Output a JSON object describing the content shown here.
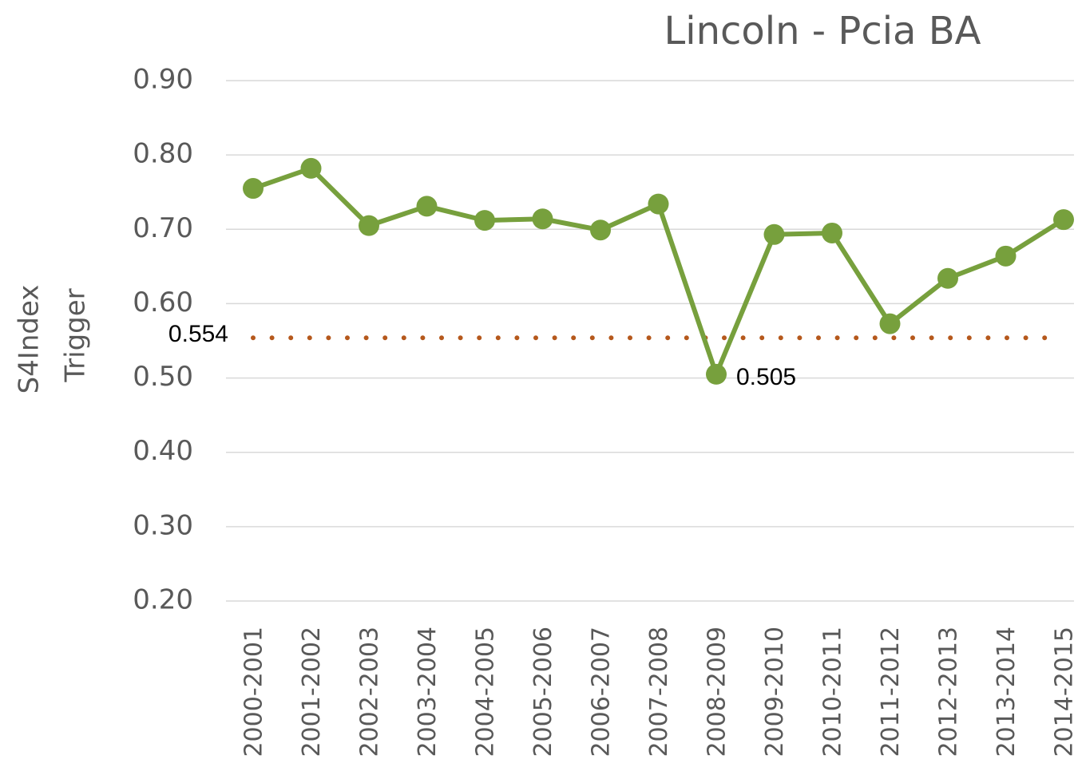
{
  "chart_data": {
    "type": "line",
    "title": "Lincoln - Pcia BA",
    "categories": [
      "2000-2001",
      "2001-2002",
      "2002-2003",
      "2003-2004",
      "2004-2005",
      "2005-2006",
      "2006-2007",
      "2007-2008",
      "2008-2009",
      "2009-2010",
      "2010-2011",
      "2011-2012",
      "2012-2013",
      "2013-2014",
      "2014-2015"
    ],
    "series": [
      {
        "name": "S4Index",
        "color": "#77a03d",
        "values": [
          0.755,
          0.782,
          0.705,
          0.731,
          0.712,
          0.714,
          0.699,
          0.734,
          0.505,
          0.693,
          0.695,
          0.573,
          0.634,
          0.664,
          0.713
        ]
      }
    ],
    "reference_lines": [
      {
        "name": "Trigger",
        "value": 0.554,
        "color": "#b5581c",
        "style": "dotted"
      }
    ],
    "ylim": [
      0.2,
      0.9
    ],
    "yticks": [
      {
        "value": 0.2,
        "label": "0.20"
      },
      {
        "value": 0.3,
        "label": "0.30"
      },
      {
        "value": 0.4,
        "label": "0.40"
      },
      {
        "value": 0.5,
        "label": "0.50"
      },
      {
        "value": 0.6,
        "label": "0.60"
      },
      {
        "value": 0.7,
        "label": "0.70"
      },
      {
        "value": 0.8,
        "label": "0.80"
      },
      {
        "value": 0.9,
        "label": "0.90"
      }
    ],
    "grid": true
  }
}
